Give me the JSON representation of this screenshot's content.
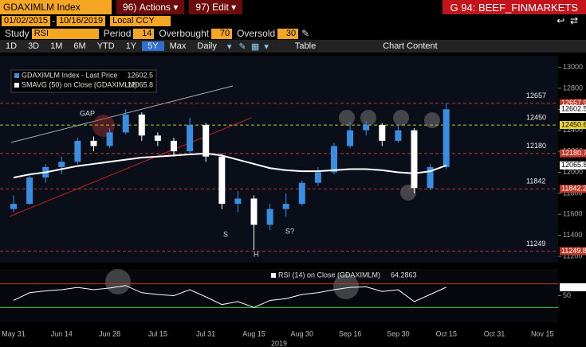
{
  "toolbar": {
    "security": "GDAXIMLM Index",
    "actions_num": "96)",
    "actions": "Actions",
    "edit_num": "97)",
    "edit": "Edit",
    "page": "G 94: BEEF_FINMARKETS",
    "start_date": "01/02/2015",
    "end_date": "10/16/2019",
    "currency": "Local CCY",
    "study_label": "Study",
    "study": "RSI",
    "period_label": "Period",
    "period": "14",
    "overbought_label": "Overbought",
    "overbought": "70",
    "oversold_label": "Oversold",
    "oversold": "30",
    "ranges": [
      "1D",
      "3D",
      "1M",
      "6M",
      "YTD",
      "1Y",
      "5Y",
      "Max"
    ],
    "frequency": "Daily",
    "table": "Table",
    "chart_content": "Chart Content"
  },
  "chart_data": [
    {
      "type": "candlestick",
      "xlabel": "2019",
      "categories": [
        "May 31",
        null,
        null,
        "Jun 14",
        null,
        null,
        "Jun 28",
        null,
        null,
        "Jul 15",
        null,
        null,
        "Jul 31",
        null,
        null,
        "Aug 15",
        null,
        null,
        "Aug 30",
        null,
        null,
        "Sep 16",
        null,
        null,
        "Sep 30",
        null,
        null,
        "Oct 15",
        null,
        null,
        "Oct 31",
        null,
        null,
        "Nov 15"
      ],
      "candles": {
        "name": "GDAXIMLM Index - Last Price",
        "last": 12602.5,
        "up_color": "#3b8de0",
        "down_color": "#ffffff",
        "open": [
          11650,
          11700,
          11950,
          12050,
          12100,
          12300,
          12250,
          12380,
          12550,
          12350,
          12300,
          12200,
          12450,
          12150,
          11700,
          11750,
          11500,
          11650,
          11700,
          11900,
          12000,
          12250,
          12400,
          12450,
          12300,
          12400,
          11850,
          12050,
          null,
          null,
          null,
          null,
          null,
          null
        ],
        "high": [
          11780,
          11980,
          12080,
          12150,
          12330,
          12340,
          12420,
          12600,
          12570,
          12380,
          12330,
          12520,
          12470,
          12180,
          11820,
          11780,
          11700,
          11800,
          11920,
          12050,
          12280,
          12480,
          12490,
          12470,
          12450,
          12420,
          12080,
          12660,
          null,
          null,
          null,
          null,
          null,
          null
        ],
        "low": [
          11620,
          11690,
          11900,
          11980,
          12080,
          12200,
          12230,
          12360,
          12300,
          12250,
          12150,
          12180,
          12100,
          11650,
          11620,
          11260,
          11450,
          11580,
          11680,
          11870,
          11980,
          12230,
          12350,
          12250,
          12280,
          11800,
          11830,
          12030,
          null,
          null,
          null,
          null,
          null,
          null
        ],
        "close": [
          11700,
          11950,
          12050,
          12100,
          12300,
          12250,
          12380,
          12550,
          12350,
          12300,
          12200,
          12450,
          12150,
          11700,
          11750,
          11500,
          11650,
          11700,
          11900,
          12000,
          12250,
          12400,
          12450,
          12300,
          12400,
          11850,
          12050,
          12600,
          null,
          null,
          null,
          null,
          null,
          null
        ]
      },
      "series": [
        {
          "name": "SMAVG (50) on Close (GDAXIMLM)",
          "color": "#ffffff",
          "last": 12065.8,
          "values": [
            11950,
            11980,
            12000,
            12030,
            12060,
            12080,
            12100,
            12120,
            12140,
            12150,
            12160,
            12170,
            12180,
            12160,
            12120,
            12080,
            12040,
            12020,
            12010,
            12010,
            12020,
            12030,
            12030,
            12020,
            12000,
            11990,
            12010,
            12065.8,
            null,
            null,
            null,
            null,
            null,
            null
          ]
        }
      ],
      "ylim": [
        11140,
        13110
      ],
      "yticks": [
        11200,
        11400,
        11600,
        11800,
        12000,
        12200,
        12400,
        12600,
        12800,
        13000
      ],
      "levels": [
        {
          "value": 12657,
          "color": "#c0392b"
        },
        {
          "value": 12450,
          "color": "#b5c832"
        },
        {
          "value": 12180,
          "color": "#c0392b"
        },
        {
          "value": 11842,
          "color": "#c0392b"
        },
        {
          "value": 11249,
          "color": "#c0392b"
        }
      ],
      "tags": [
        {
          "value": 12657.9,
          "color": "#c0392b"
        },
        {
          "value": 12602.5,
          "color": "#ffffff"
        },
        {
          "value": 12450.6,
          "color": "#e8d53a"
        },
        {
          "value": 12180.7,
          "color": "#c0392b"
        },
        {
          "value": 12065.8,
          "color": "#ffffff"
        },
        {
          "value": 11842.2,
          "color": "#c0392b"
        },
        {
          "value": 11249.8,
          "color": "#c0392b"
        }
      ],
      "annotations": [
        "GAP",
        "S",
        "S?",
        "H"
      ]
    },
    {
      "type": "line",
      "series": [
        {
          "name": "RSI (14) on Close (GDAXIMLM)",
          "color": "#ffffff",
          "last": 64.2863,
          "values": [
            42,
            55,
            58,
            60,
            64,
            60,
            63,
            67,
            55,
            52,
            50,
            60,
            48,
            35,
            40,
            30,
            42,
            45,
            52,
            55,
            60,
            64,
            65,
            57,
            60,
            40,
            52,
            64.2863,
            null,
            null,
            null,
            null,
            null,
            null
          ]
        }
      ],
      "ylim": [
        5,
        95
      ],
      "yticks": [
        50
      ],
      "levels": [
        {
          "value": 70,
          "color": "#c0392b"
        },
        {
          "value": 30,
          "color": "#2ecc40"
        }
      ]
    }
  ]
}
